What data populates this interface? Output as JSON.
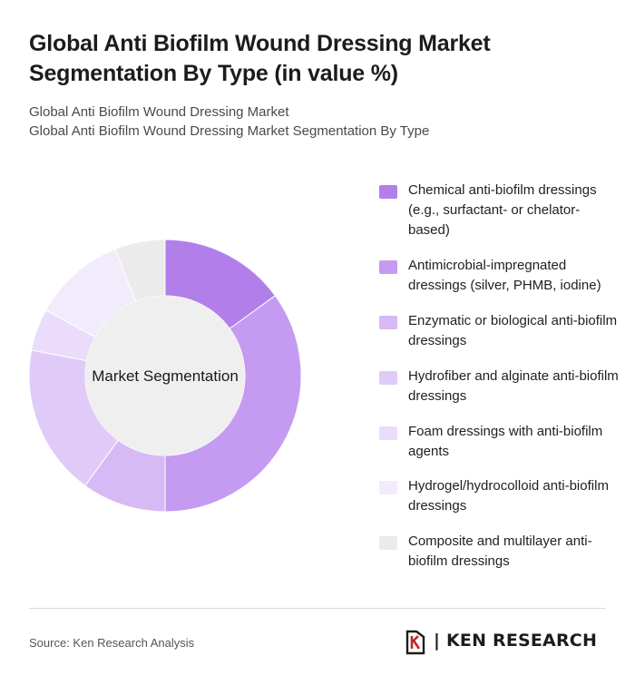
{
  "header": {
    "title": "Global Anti Biofilm Wound Dressing Market Segmentation By Type (in value %)",
    "subtitle_line1": "Global Anti Biofilm Wound Dressing Market",
    "subtitle_line2": "Global Anti Biofilm Wound Dressing Market Segmentation By Type"
  },
  "chart_data": {
    "type": "pie",
    "style": "donut",
    "center_label": "Market Segmentation",
    "legend_position": "right",
    "categories": [
      "Chemical anti-biofilm dressings (e.g., surfactant- or chelator-based)",
      "Antimicrobial-impregnated dressings (silver, PHMB, iodine)",
      "Enzymatic or biological anti-biofilm dressings",
      "Hydrofiber and alginate anti-biofilm dressings",
      "Foam dressings with anti-biofilm agents",
      "Hydrogel/hydrocolloid anti-biofilm dressings",
      "Composite and multilayer anti-biofilm dressings"
    ],
    "values": [
      15,
      35,
      10,
      18,
      5,
      11,
      6
    ],
    "colors": [
      "#b27fea",
      "#c49bf0",
      "#d6b9f5",
      "#e0cbf8",
      "#eadcfa",
      "#f2ebfc",
      "#ebebeb"
    ]
  },
  "footer": {
    "source": "Source: Ken Research Analysis",
    "brand_name": "KEN RESEARCH",
    "brand_separator": "|"
  }
}
